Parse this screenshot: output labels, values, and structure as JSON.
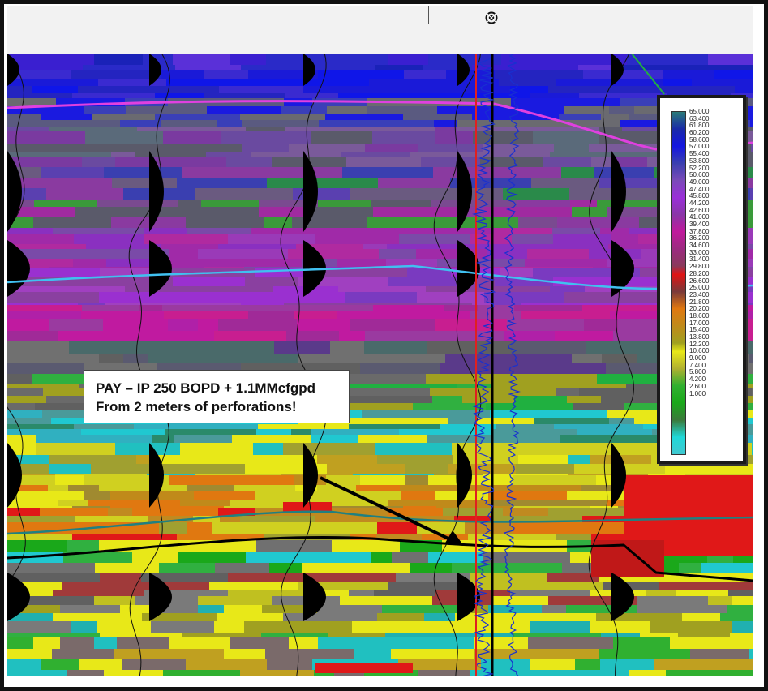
{
  "legend": {
    "title": "",
    "labels": [
      "65.000",
      "63.400",
      "61.800",
      "60.200",
      "58.600",
      "57.000",
      "55.400",
      "53.800",
      "52.200",
      "50.600",
      "49.000",
      "47.400",
      "45.800",
      "44.200",
      "42.600",
      "41.000",
      "39.400",
      "37.800",
      "36.200",
      "34.600",
      "33.000",
      "31.400",
      "29.800",
      "28.200",
      "26.600",
      "25.000",
      "23.400",
      "21.800",
      "20.200",
      "18.600",
      "17.000",
      "15.400",
      "13.800",
      "12.200",
      "10.600",
      "9.000",
      "7.400",
      "5.800",
      "4.200",
      "2.600",
      "1.000"
    ],
    "gradient_stops": [
      {
        "value": 65.0,
        "color": "#2a7a78"
      },
      {
        "value": 61.8,
        "color": "#1a2aa8"
      },
      {
        "value": 58.6,
        "color": "#1416e0"
      },
      {
        "value": 55.4,
        "color": "#3a3fb0"
      },
      {
        "value": 52.2,
        "color": "#7a4ab8"
      },
      {
        "value": 49.0,
        "color": "#9a2fd8"
      },
      {
        "value": 45.8,
        "color": "#8a36a8"
      },
      {
        "value": 42.6,
        "color": "#c01a9c"
      },
      {
        "value": 39.4,
        "color": "#9c2a80"
      },
      {
        "value": 36.2,
        "color": "#8a3a5c"
      },
      {
        "value": 34.6,
        "color": "#e01414"
      },
      {
        "value": 31.4,
        "color": "#7a3a3a"
      },
      {
        "value": 28.2,
        "color": "#e07810"
      },
      {
        "value": 25.0,
        "color": "#c08a1a"
      },
      {
        "value": 21.8,
        "color": "#a0a020"
      },
      {
        "value": 20.2,
        "color": "#e8e818"
      },
      {
        "value": 17.0,
        "color": "#b0b030"
      },
      {
        "value": 13.8,
        "color": "#30b030"
      },
      {
        "value": 10.6,
        "color": "#1aa81a"
      },
      {
        "value": 7.4,
        "color": "#3a7a3a"
      },
      {
        "value": 4.2,
        "color": "#20d8d8"
      },
      {
        "value": 1.0,
        "color": "#40c8d0"
      }
    ]
  },
  "annotation": {
    "line1": "PAY – IP 250 BOPD + 1.1MMcfgpd",
    "line2": "From 2 meters of perforations!"
  },
  "colors": {
    "horizon_top": "#e040e0",
    "horizon_mid": "#40c0f0",
    "horizon_teal": "#208080",
    "horizon_black": "#000000",
    "gamma_ray_curve": "#1830d0",
    "well_track": "#e02020"
  },
  "icons": {
    "well_symbol": "well-symbol-icon"
  }
}
